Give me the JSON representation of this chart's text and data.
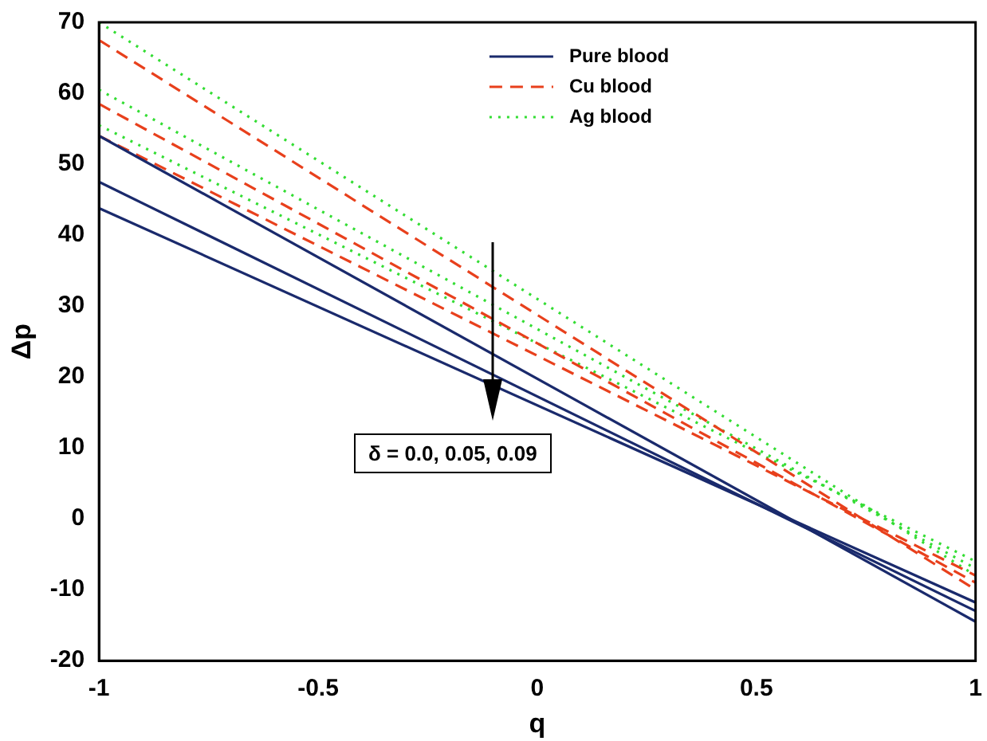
{
  "chart_data": {
    "type": "line",
    "xlabel": "q",
    "ylabel": "Δp",
    "xlim": [
      -1,
      1
    ],
    "ylim": [
      -20,
      70
    ],
    "xticks": [
      -1,
      -0.5,
      0,
      0.5,
      1
    ],
    "yticks": [
      -20,
      -10,
      0,
      10,
      20,
      30,
      40,
      50,
      60,
      70
    ],
    "grid": false,
    "legend": "top",
    "marker": "none",
    "annotations": [
      "δ = 0.0, 0.05, 0.09"
    ],
    "x": [
      -1,
      1
    ],
    "series": [
      {
        "name": "Pure blood",
        "color": "#1a2a6c",
        "line_style": "solid",
        "values": [
          54,
          -14.5
        ]
      },
      {
        "color": "#1a2a6c",
        "line_style": "solid",
        "values": [
          47.5,
          -13
        ]
      },
      {
        "color": "#1a2a6c",
        "line_style": "solid",
        "values": [
          43.8,
          -11.8
        ]
      },
      {
        "name": "Cu blood",
        "color": "#e8401c",
        "line_style": "dashed",
        "values": [
          67.5,
          -10
        ]
      },
      {
        "color": "#e8401c",
        "line_style": "dashed",
        "values": [
          58.5,
          -9
        ]
      },
      {
        "color": "#e8401c",
        "line_style": "dashed",
        "values": [
          54,
          -8
        ]
      },
      {
        "name": "Ag blood",
        "color": "#33dd33",
        "line_style": "dotted",
        "values": [
          70,
          -8
        ]
      },
      {
        "color": "#33dd33",
        "line_style": "dotted",
        "values": [
          60.5,
          -7
        ]
      },
      {
        "color": "#33dd33",
        "line_style": "dotted",
        "values": [
          55.5,
          -6
        ]
      }
    ]
  }
}
